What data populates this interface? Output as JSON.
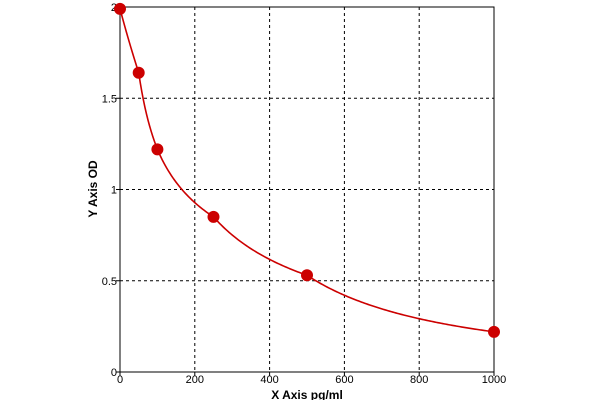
{
  "chart_data": {
    "type": "scatter",
    "title": "",
    "xlabel": "X Axis pg/ml",
    "ylabel": "Y Axis OD",
    "xlim": [
      0,
      1000
    ],
    "ylim": [
      0,
      2
    ],
    "x_ticks": [
      0,
      200,
      400,
      600,
      800,
      1000
    ],
    "y_ticks": [
      0,
      0.5,
      1,
      1.5,
      2
    ],
    "x_tick_labels": [
      "0",
      "200",
      "400",
      "600",
      "800",
      "1000"
    ],
    "y_tick_labels": [
      "0",
      "0.5",
      "1",
      "1.5",
      "2"
    ],
    "grid": true,
    "series": [
      {
        "points": [
          {
            "x": 0,
            "y": 1.99
          },
          {
            "x": 50,
            "y": 1.64
          },
          {
            "x": 100,
            "y": 1.22
          },
          {
            "x": 250,
            "y": 0.85
          },
          {
            "x": 500,
            "y": 0.53
          },
          {
            "x": 1000,
            "y": 0.22
          }
        ],
        "color": "#cc0000",
        "fit_curve": true
      }
    ]
  }
}
